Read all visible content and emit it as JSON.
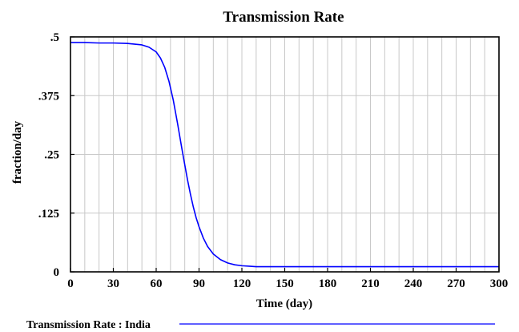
{
  "chart_data": {
    "type": "line",
    "title": "Transmission Rate",
    "xlabel": "Time (day)",
    "ylabel": "fraction/day",
    "xlim": [
      0,
      300
    ],
    "ylim": [
      0,
      0.5
    ],
    "x_ticks": [
      0,
      30,
      60,
      90,
      120,
      150,
      180,
      210,
      240,
      270,
      300
    ],
    "x_tick_labels": [
      "0",
      "30",
      "60",
      "90",
      "120",
      "150",
      "180",
      "210",
      "240",
      "270",
      "300"
    ],
    "y_ticks": [
      0,
      0.125,
      0.25,
      0.375,
      0.5
    ],
    "y_tick_labels": [
      "0",
      ".125",
      ".25",
      ".375",
      ".5"
    ],
    "grid": true,
    "legend_position": "bottom",
    "series": [
      {
        "name": "Transmission Rate : India",
        "color": "#0000ff",
        "x": [
          0,
          10,
          20,
          30,
          40,
          50,
          55,
          60,
          63,
          66,
          69,
          72,
          75,
          78,
          80,
          82,
          84,
          86,
          88,
          90,
          93,
          96,
          100,
          105,
          110,
          115,
          120,
          125,
          130,
          140,
          160,
          200,
          250,
          300
        ],
        "y": [
          0.488,
          0.488,
          0.487,
          0.487,
          0.486,
          0.483,
          0.478,
          0.468,
          0.455,
          0.435,
          0.405,
          0.365,
          0.315,
          0.262,
          0.228,
          0.195,
          0.165,
          0.138,
          0.115,
          0.096,
          0.072,
          0.054,
          0.038,
          0.026,
          0.019,
          0.015,
          0.013,
          0.012,
          0.011,
          0.011,
          0.011,
          0.011,
          0.011,
          0.011
        ]
      }
    ]
  }
}
